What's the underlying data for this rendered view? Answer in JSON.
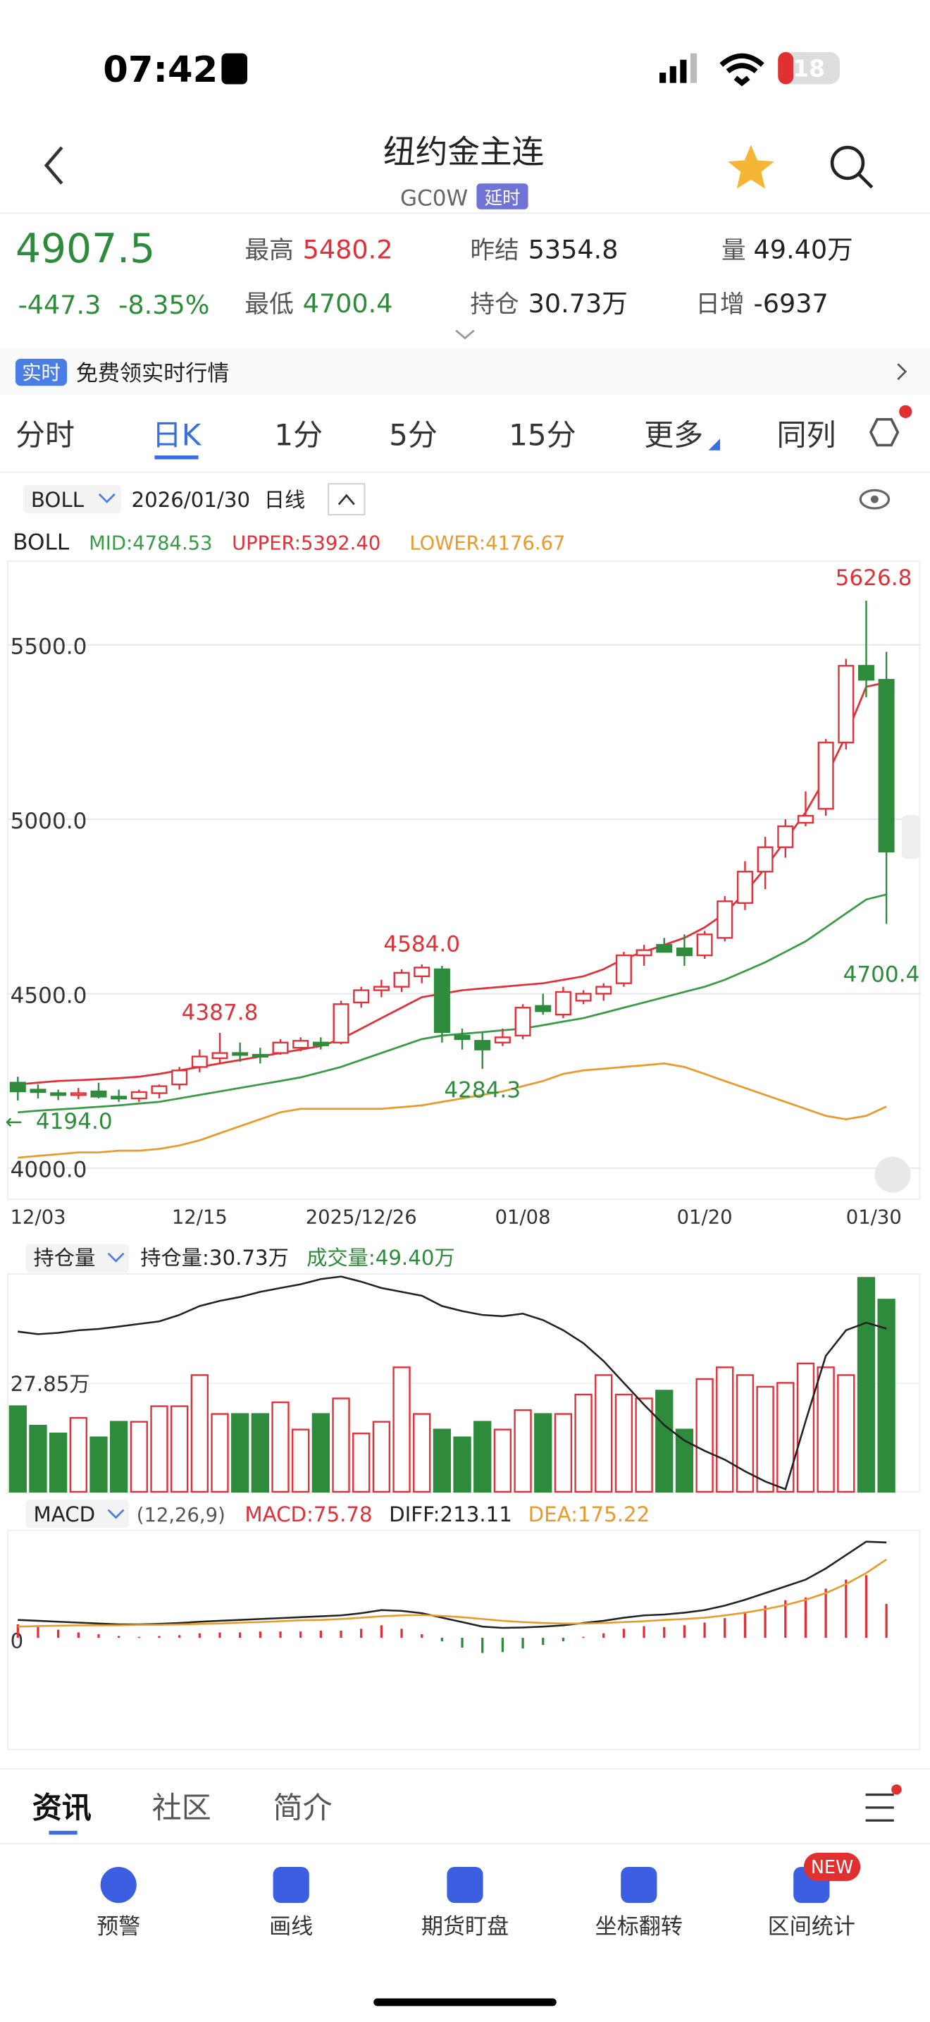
{
  "status": {
    "time": "07:42",
    "battery": "18"
  },
  "header": {
    "title": "纽约金主连",
    "code": "GC0W",
    "tag": "延时"
  },
  "quote": {
    "price": "4907.5",
    "change": "-447.3",
    "change_pct": "-8.35%",
    "high_label": "最高",
    "high": "5480.2",
    "low_label": "最低",
    "low": "4700.4",
    "prev_label": "昨结",
    "prev": "5354.8",
    "oi_label": "持仓",
    "oi": "30.73万",
    "vol_label": "量",
    "vol": "49.40万",
    "daily_label": "日增",
    "daily": "-6937"
  },
  "banner": {
    "tag": "实时",
    "text": "免费领实时行情"
  },
  "tabs": [
    "分时",
    "日K",
    "1分",
    "5分",
    "15分",
    "更多",
    "同列"
  ],
  "toolbar": {
    "indicator": "BOLL",
    "date": "2026/01/30",
    "period": "日线"
  },
  "chart_data": [
    {
      "type": "candlestick",
      "title": "BOLL",
      "categories": [
        "12/03",
        null,
        null,
        null,
        null,
        null,
        null,
        null,
        null,
        "12/15",
        null,
        null,
        null,
        null,
        null,
        null,
        null,
        "2025/12/26",
        null,
        null,
        null,
        null,
        null,
        null,
        null,
        "01/08",
        null,
        null,
        null,
        null,
        null,
        null,
        null,
        null,
        "01/20",
        null,
        null,
        null,
        null,
        null,
        null,
        null,
        null,
        "01/30"
      ],
      "open": [
        4245,
        4225,
        4215,
        4212,
        4220,
        4205,
        4200,
        4215,
        4240,
        4290,
        4315,
        4330,
        4325,
        4330,
        4345,
        4360,
        4360,
        4475,
        4510,
        4520,
        4550,
        4570,
        4380,
        4365,
        4360,
        4380,
        4465,
        4440,
        4480,
        4500,
        4530,
        4610,
        4640,
        4630,
        4610,
        4660,
        4760,
        4850,
        4920,
        4990,
        5030,
        5220,
        5440,
        5400
      ],
      "high": [
        4262,
        4240,
        4225,
        4230,
        4245,
        4225,
        4225,
        4240,
        4290,
        4340,
        4387.8,
        4360,
        4345,
        4370,
        4375,
        4375,
        4480,
        4520,
        4540,
        4570,
        4584.0,
        4580,
        4400,
        4390,
        4400,
        4470,
        4500,
        4520,
        4510,
        4530,
        4620,
        4640,
        4660,
        4670,
        4680,
        4780,
        4880,
        4950,
        5000,
        5080,
        5230,
        5460,
        5626.8,
        5480.2
      ],
      "low": [
        4194,
        4200,
        4195,
        4198,
        4200,
        4190,
        4190,
        4200,
        4225,
        4275,
        4300,
        4305,
        4300,
        4325,
        4335,
        4340,
        4355,
        4460,
        4490,
        4505,
        4530,
        4360,
        4340,
        4284.3,
        4350,
        4370,
        4440,
        4430,
        4470,
        4480,
        4520,
        4580,
        4620,
        4580,
        4600,
        4650,
        4740,
        4800,
        4890,
        4980,
        5010,
        5200,
        5350,
        4700.4
      ],
      "close": [
        4220,
        4218,
        4210,
        4215,
        4205,
        4200,
        4218,
        4235,
        4280,
        4320,
        4330,
        4325,
        4320,
        4360,
        4365,
        4352,
        4470,
        4510,
        4520,
        4560,
        4575,
        4390,
        4370,
        4340,
        4375,
        4460,
        4450,
        4505,
        4500,
        4520,
        4610,
        4625,
        4620,
        4610,
        4670,
        4765,
        4850,
        4920,
        4980,
        5010,
        5220,
        5440,
        5400,
        4907.5
      ],
      "up_color": "#e0303a",
      "down_color": "#2f8b3c",
      "series": [
        {
          "name": "MID:4784.53",
          "color": "#3a9a48",
          "values": [
            4160,
            4165,
            4168,
            4172,
            4176,
            4180,
            4185,
            4190,
            4200,
            4210,
            4220,
            4230,
            4240,
            4250,
            4260,
            4275,
            4290,
            4310,
            4330,
            4350,
            4370,
            4380,
            4385,
            4390,
            4395,
            4400,
            4410,
            4420,
            4430,
            4445,
            4460,
            4475,
            4490,
            4505,
            4520,
            4540,
            4565,
            4590,
            4620,
            4650,
            4690,
            4730,
            4770,
            4784.53
          ]
        },
        {
          "name": "UPPER:5392.40",
          "color": "#e0303a",
          "values": [
            4240,
            4245,
            4250,
            4252,
            4255,
            4258,
            4262,
            4270,
            4280,
            4290,
            4300,
            4310,
            4320,
            4330,
            4340,
            4350,
            4370,
            4400,
            4430,
            4460,
            4490,
            4500,
            4510,
            4515,
            4520,
            4525,
            4530,
            4540,
            4550,
            4570,
            4600,
            4620,
            4640,
            4660,
            4690,
            4730,
            4790,
            4860,
            4940,
            5020,
            5120,
            5240,
            5380,
            5392.4
          ]
        },
        {
          "name": "LOWER:4176.67",
          "color": "#e89a2c",
          "values": [
            4030,
            4035,
            4040,
            4045,
            4045,
            4050,
            4050,
            4055,
            4065,
            4080,
            4100,
            4120,
            4140,
            4160,
            4170,
            4170,
            4170,
            4170,
            4170,
            4175,
            4180,
            4190,
            4200,
            4210,
            4220,
            4235,
            4250,
            4270,
            4280,
            4285,
            4290,
            4295,
            4300,
            4290,
            4270,
            4250,
            4230,
            4210,
            4190,
            4170,
            4150,
            4140,
            4150,
            4176.67
          ]
        }
      ],
      "annotations": [
        {
          "value": 5626.8,
          "label": "5626.8"
        },
        {
          "value": 4700.4,
          "label": "4700.4"
        },
        {
          "value": 4584.0,
          "label": "4584.0"
        },
        {
          "value": 4387.8,
          "label": "4387.8"
        },
        {
          "value": 4284.3,
          "label": "4284.3"
        },
        {
          "value": 4194,
          "label": "4194.0"
        }
      ],
      "ylim": [
        3911,
        5740
      ],
      "yticks": [
        {
          "value": 4000,
          "label": "4000.0"
        },
        {
          "value": 4500,
          "label": "4500.0"
        },
        {
          "value": 5000,
          "label": "5000.0"
        },
        {
          "value": 5500,
          "label": "5500.0"
        }
      ],
      "grid": true
    },
    {
      "type": "bar_line",
      "title": "持仓量",
      "series": [
        {
          "name": "持仓量:30.73万",
          "color": "#222222",
          "kind": "line",
          "axis": "y2",
          "values": [
            30.5,
            30.3,
            30.4,
            30.6,
            30.7,
            30.9,
            31.1,
            31.3,
            31.8,
            32.5,
            32.9,
            33.2,
            33.6,
            33.9,
            34.2,
            34.6,
            34.8,
            34.4,
            33.9,
            33.6,
            33.3,
            32.5,
            32.1,
            31.8,
            31.7,
            31.9,
            31.4,
            30.6,
            29.6,
            28.2,
            26.5,
            24.8,
            23.2,
            22.0,
            21.2,
            20.5,
            19.6,
            18.8,
            18.2,
            23.5,
            28.6,
            30.6,
            31.2,
            30.73
          ]
        },
        {
          "name": "成交量:49.40万",
          "color": "#2f8b3c",
          "kind": "bar",
          "values": [
            22,
            17,
            15,
            19,
            14,
            18,
            18,
            22,
            22,
            30,
            20,
            20,
            20,
            23,
            16,
            20,
            24,
            15,
            18,
            32,
            20,
            16,
            14,
            18,
            16,
            21,
            20,
            20,
            25,
            30,
            25,
            24,
            26,
            16,
            29,
            32,
            30,
            27,
            28,
            33,
            32,
            30,
            55,
            49.4
          ]
        }
      ],
      "ylim": [
        0,
        56
      ],
      "yticks": [
        {
          "value": 27.85,
          "label": "27.85万"
        }
      ],
      "y2lim": [
        18,
        35
      ]
    },
    {
      "type": "macd",
      "title": "MACD",
      "params": "(12,26,9)",
      "series": [
        {
          "name": "MACD:75.78",
          "color": "#e0303a",
          "kind": "bar",
          "values": [
            30,
            24,
            18,
            12,
            8,
            4,
            2,
            4,
            6,
            10,
            12,
            12,
            14,
            14,
            14,
            16,
            16,
            20,
            28,
            20,
            8,
            -8,
            -22,
            -34,
            -32,
            -24,
            -16,
            -8,
            2,
            10,
            20,
            26,
            24,
            28,
            34,
            44,
            58,
            72,
            84,
            90,
            110,
            130,
            140,
            75.78
          ]
        },
        {
          "name": "DIFF:213.11",
          "color": "#222222",
          "kind": "line",
          "values": [
            40,
            38,
            36,
            34,
            32,
            30,
            30,
            31,
            33,
            36,
            38,
            40,
            42,
            44,
            46,
            48,
            50,
            55,
            62,
            60,
            55,
            45,
            35,
            25,
            22,
            23,
            25,
            28,
            33,
            38,
            45,
            50,
            52,
            56,
            62,
            72,
            85,
            100,
            115,
            130,
            155,
            185,
            215,
            213.11
          ]
        },
        {
          "name": "DEA:175.22",
          "color": "#e89a2c",
          "kind": "line",
          "values": [
            25,
            26,
            27,
            28,
            28,
            28,
            29,
            29,
            30,
            31,
            32,
            34,
            35,
            37,
            39,
            40,
            42,
            45,
            48,
            50,
            51,
            49,
            46,
            42,
            38,
            35,
            33,
            32,
            32,
            33,
            35,
            37,
            40,
            42,
            45,
            50,
            56,
            64,
            73,
            85,
            100,
            120,
            145,
            175.22
          ]
        }
      ],
      "down_color": "#2f8b3c",
      "ylim": [
        -250,
        240
      ],
      "yticks": [
        0
      ]
    }
  ],
  "sub_tabs": [
    "资讯",
    "社区",
    "简介"
  ],
  "nav": {
    "badge": "NEW",
    "items": [
      "预警",
      "画线",
      "期货盯盘",
      "坐标翻转",
      "区间统计"
    ]
  }
}
